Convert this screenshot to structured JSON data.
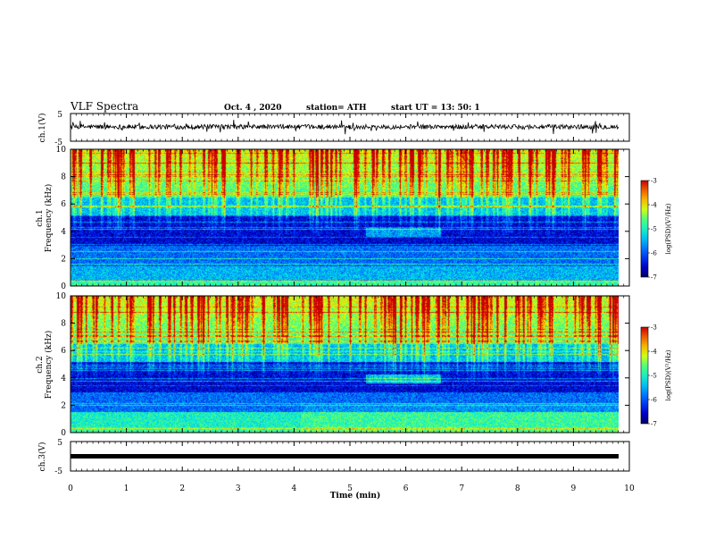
{
  "header": {
    "title": "VLF Spectra",
    "date": "Oct. 4 , 2020",
    "station": "station= ATH",
    "start": "start UT = 13: 50: 1"
  },
  "chart_data": [
    {
      "type": "line",
      "name": "ch1-waveform",
      "ylabel": "ch.1(V)",
      "ylim": [
        -5,
        5
      ],
      "yticks": [
        "5",
        "-5"
      ],
      "xlim": [
        0,
        10
      ],
      "baseline": 0,
      "noise_amplitude": 1.2
    },
    {
      "type": "heatmap",
      "name": "ch1-spectrogram",
      "ylabel_top": "ch.1",
      "ylabel": "Frequency (kHz)",
      "ylim": [
        0,
        10
      ],
      "yticks": [
        "0",
        "2",
        "4",
        "6",
        "8",
        "10"
      ],
      "xlim": [
        0,
        10
      ],
      "colorbar": {
        "label": "log(PSD)(V²/Hz)",
        "range": [
          -7,
          -3
        ],
        "ticks": [
          "-3",
          "-4",
          "-5",
          "-6",
          "-7"
        ]
      }
    },
    {
      "type": "heatmap",
      "name": "ch2-spectrogram",
      "ylabel_top": "ch.2",
      "ylabel": "Frequency (kHz)",
      "ylim": [
        0,
        10
      ],
      "yticks": [
        "0",
        "2",
        "4",
        "6",
        "8",
        "10"
      ],
      "xlim": [
        0,
        10
      ],
      "colorbar": {
        "label": "log(PSD)(V²/Hz)",
        "range": [
          -7,
          -3
        ],
        "ticks": [
          "-3",
          "-4",
          "-5",
          "-6",
          "-7"
        ]
      }
    },
    {
      "type": "line",
      "name": "ch3-waveform",
      "ylabel": "ch.3(V)",
      "ylim": [
        -5,
        5
      ],
      "yticks": [
        "5",
        "-5"
      ],
      "xlim": [
        0,
        10
      ],
      "baseline": 0
    }
  ],
  "xaxis": {
    "label": "Time (min)",
    "ticks": [
      "0",
      "1",
      "2",
      "3",
      "4",
      "5",
      "6",
      "7",
      "8",
      "9",
      "10"
    ]
  }
}
